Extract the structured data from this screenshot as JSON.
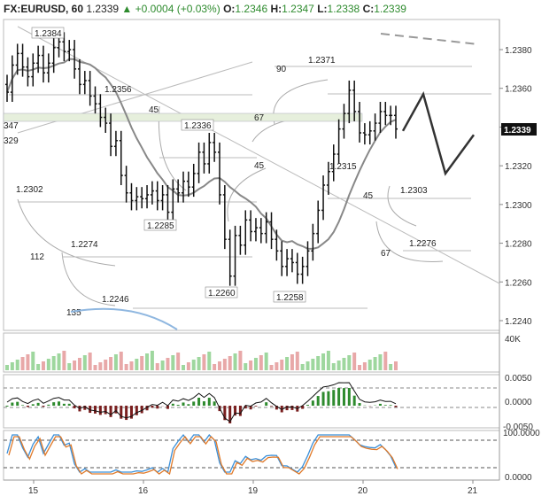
{
  "header": {
    "symbol": "FX:EURUSD, 60",
    "last": "1.2339",
    "change": "+0.0004 (+0.03%)",
    "o_label": "O:",
    "o": "1.2346",
    "h_label": "H:",
    "h": "1.2347",
    "l_label": "L:",
    "l": "1.2338",
    "c_label": "C:",
    "c": "1.2339"
  },
  "colors": {
    "candle": "#111111",
    "ma": "#888888",
    "projection": "#333333",
    "price_tag_bg": "#111111",
    "histogram_up": "#2e8b2e",
    "histogram_down": "#7a1f1f",
    "stoch_k": "#3a8fd8",
    "stoch_d": "#e07a2a",
    "volume_up": "#9ed79e",
    "volume_down": "#e8a8a8",
    "highlight_band": "#e6efdc"
  },
  "price_axis": {
    "ticks": [
      "1.2380",
      "1.2360",
      "1.2340",
      "1.2320",
      "1.2300",
      "1.2280",
      "1.2260",
      "1.2240"
    ],
    "current_tag": "1.2339"
  },
  "time_axis": {
    "ticks": [
      "15",
      "16",
      "19",
      "20",
      "21"
    ]
  },
  "volume_axis": {
    "ticks": [
      "40K"
    ]
  },
  "macd_axis": {
    "ticks": [
      "0.0050",
      "0.0000",
      "-0.0050"
    ]
  },
  "stoch_axis": {
    "ticks": [
      "100.0000",
      "0.0000"
    ]
  },
  "annotations": {
    "price_labels": [
      "1.2384",
      "1.2356",
      "347",
      "329",
      "1.2302",
      "1.2274",
      "1.2246",
      "1.2336",
      "1.2285",
      "1.2260",
      "1.2258",
      "1.2371",
      "1.2315",
      "1.2303",
      "1.2276"
    ],
    "fib_labels": [
      "90",
      "45",
      "67",
      "45",
      "112",
      "135",
      "45",
      "67"
    ]
  },
  "chart_data": {
    "type": "candlestick",
    "symbol": "FX:EURUSD",
    "timeframe": "60",
    "x_ticks": [
      "15",
      "16",
      "19",
      "20",
      "21"
    ],
    "y_ticks": [
      1.238,
      1.236,
      1.234,
      1.232,
      1.23,
      1.228,
      1.226,
      1.224
    ],
    "ylim": [
      1.2232,
      1.2402
    ],
    "grid": false,
    "ohlc_close": [
      1.2358,
      1.2372,
      1.2378,
      1.2371,
      1.2366,
      1.2373,
      1.2377,
      1.2368,
      1.2373,
      1.2381,
      1.2384,
      1.2379,
      1.238,
      1.237,
      1.2362,
      1.2364,
      1.2356,
      1.2352,
      1.2345,
      1.2342,
      1.233,
      1.2333,
      1.2315,
      1.2306,
      1.2302,
      1.2304,
      1.2303,
      1.2305,
      1.2307,
      1.2302,
      1.2305,
      1.2296,
      1.2308,
      1.2306,
      1.2312,
      1.2309,
      1.2316,
      1.2327,
      1.2321,
      1.2332,
      1.2327,
      1.2305,
      1.2282,
      1.2263,
      1.2284,
      1.2279,
      1.2292,
      1.2286,
      1.2288,
      1.2285,
      1.2291,
      1.2282,
      1.2276,
      1.2268,
      1.2272,
      1.227,
      1.2264,
      1.2268,
      1.2276,
      1.2285,
      1.2297,
      1.231,
      1.2317,
      1.2326,
      1.2339,
      1.2347,
      1.2359,
      1.2348,
      1.2337,
      1.2336,
      1.2338,
      1.2342,
      1.2348,
      1.2346,
      1.2346,
      1.2339
    ],
    "series": [
      {
        "name": "Volume",
        "type": "bar"
      },
      {
        "name": "MACD",
        "type": "histogram"
      },
      {
        "name": "Stochastic",
        "type": "line"
      }
    ],
    "projection_path": [
      1.2338,
      1.2357,
      1.2316,
      1.2336
    ]
  }
}
